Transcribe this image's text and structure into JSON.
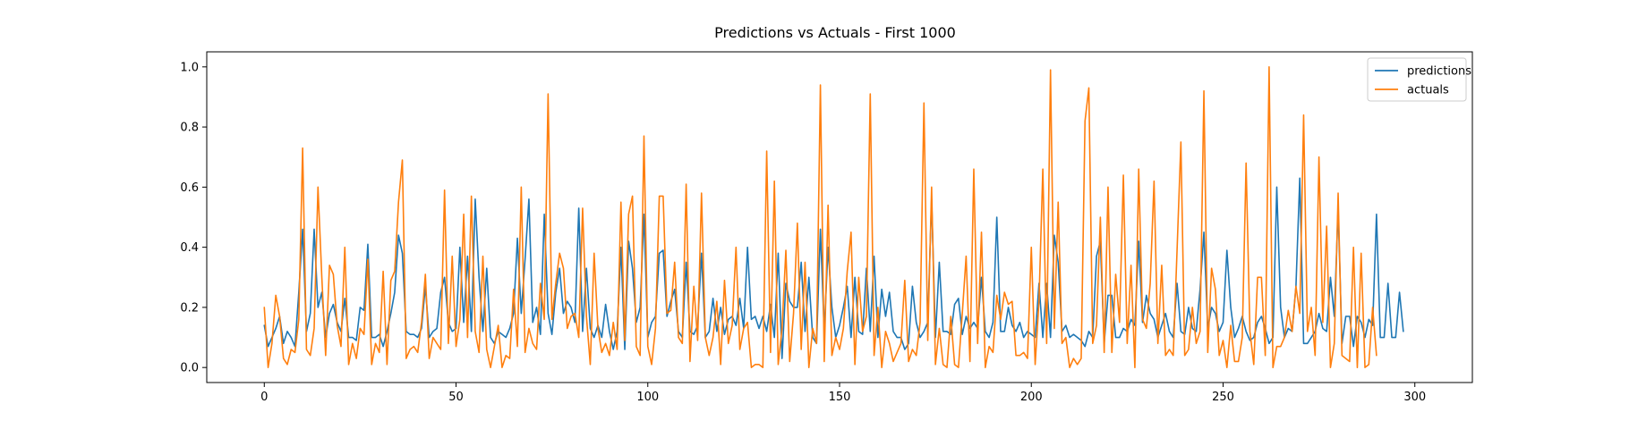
{
  "chart_data": {
    "type": "line",
    "title": "Predictions vs Actuals - First 1000",
    "xlabel": "",
    "ylabel": "",
    "xlim": [
      -15,
      315
    ],
    "ylim": [
      -0.05,
      1.05
    ],
    "x_ticks": [
      0,
      50,
      100,
      150,
      200,
      250,
      300
    ],
    "x_tick_labels": [
      "0",
      "50",
      "100",
      "150",
      "200",
      "250",
      "300"
    ],
    "y_ticks": [
      0.0,
      0.2,
      0.4,
      0.6,
      0.8,
      1.0
    ],
    "y_tick_labels": [
      "0.0",
      "0.2",
      "0.4",
      "0.6",
      "0.8",
      "1.0"
    ],
    "grid": false,
    "legend_position": "upper-right",
    "series": [
      {
        "name": "predictions",
        "color": "#1f77b4",
        "values": [
          0.14,
          0.07,
          0.1,
          0.13,
          0.17,
          0.08,
          0.12,
          0.1,
          0.07,
          0.25,
          0.46,
          0.12,
          0.18,
          0.46,
          0.2,
          0.25,
          0.1,
          0.18,
          0.21,
          0.15,
          0.12,
          0.23,
          0.1,
          0.1,
          0.09,
          0.2,
          0.19,
          0.41,
          0.1,
          0.1,
          0.11,
          0.07,
          0.12,
          0.18,
          0.25,
          0.44,
          0.38,
          0.12,
          0.11,
          0.11,
          0.1,
          0.13,
          0.27,
          0.1,
          0.12,
          0.13,
          0.25,
          0.3,
          0.15,
          0.12,
          0.13,
          0.4,
          0.15,
          0.37,
          0.12,
          0.56,
          0.3,
          0.12,
          0.33,
          0.1,
          0.08,
          0.12,
          0.11,
          0.1,
          0.13,
          0.18,
          0.43,
          0.18,
          0.36,
          0.56,
          0.15,
          0.2,
          0.11,
          0.51,
          0.18,
          0.11,
          0.25,
          0.33,
          0.18,
          0.22,
          0.2,
          0.15,
          0.53,
          0.12,
          0.33,
          0.13,
          0.1,
          0.14,
          0.1,
          0.21,
          0.12,
          0.06,
          0.12,
          0.4,
          0.06,
          0.42,
          0.33,
          0.15,
          0.2,
          0.51,
          0.1,
          0.15,
          0.17,
          0.38,
          0.39,
          0.17,
          0.22,
          0.26,
          0.12,
          0.1,
          0.35,
          0.12,
          0.11,
          0.14,
          0.38,
          0.1,
          0.12,
          0.23,
          0.12,
          0.2,
          0.11,
          0.16,
          0.17,
          0.14,
          0.23,
          0.13,
          0.4,
          0.16,
          0.17,
          0.13,
          0.17,
          0.12,
          0.21,
          0.1,
          0.38,
          0.03,
          0.28,
          0.22,
          0.2,
          0.2,
          0.35,
          0.12,
          0.3,
          0.1,
          0.08,
          0.46,
          0.12,
          0.4,
          0.2,
          0.1,
          0.14,
          0.2,
          0.27,
          0.1,
          0.3,
          0.12,
          0.11,
          0.33,
          0.12,
          0.37,
          0.1,
          0.26,
          0.17,
          0.25,
          0.12,
          0.1,
          0.1,
          0.06,
          0.08,
          0.27,
          0.15,
          0.1,
          0.12,
          0.15,
          0.56,
          0.1,
          0.35,
          0.12,
          0.12,
          0.11,
          0.21,
          0.23,
          0.11,
          0.17,
          0.13,
          0.15,
          0.13,
          0.3,
          0.12,
          0.1,
          0.15,
          0.5,
          0.12,
          0.12,
          0.2,
          0.14,
          0.12,
          0.15,
          0.1,
          0.12,
          0.11,
          0.1,
          0.28,
          0.1,
          0.28,
          0.1,
          0.44,
          0.35,
          0.12,
          0.14,
          0.1,
          0.11,
          0.1,
          0.09,
          0.07,
          0.12,
          0.1,
          0.37,
          0.42,
          0.08,
          0.24,
          0.24,
          0.1,
          0.1,
          0.13,
          0.12,
          0.16,
          0.14,
          0.42,
          0.15,
          0.24,
          0.18,
          0.16,
          0.1,
          0.14,
          0.18,
          0.12,
          0.1,
          0.28,
          0.12,
          0.11,
          0.2,
          0.13,
          0.12,
          0.26,
          0.45,
          0.13,
          0.2,
          0.18,
          0.12,
          0.15,
          0.39,
          0.2,
          0.1,
          0.13,
          0.17,
          0.12,
          0.09,
          0.1,
          0.15,
          0.17,
          0.13,
          0.08,
          0.1,
          0.6,
          0.2,
          0.1,
          0.13,
          0.12,
          0.27,
          0.63,
          0.08,
          0.08,
          0.1,
          0.12,
          0.18,
          0.13,
          0.12,
          0.3,
          0.17,
          0.53,
          0.08,
          0.17,
          0.17,
          0.07,
          0.17,
          0.15,
          0.1,
          0.16,
          0.14,
          0.51,
          0.1,
          0.1,
          0.28,
          0.1,
          0.1,
          0.25,
          0.12
        ],
        "values_note_removed": ""
      },
      {
        "name": "actuals",
        "color": "#ff7f0e",
        "values": [
          0.2,
          0.0,
          0.08,
          0.24,
          0.17,
          0.03,
          0.01,
          0.06,
          0.05,
          0.16,
          0.73,
          0.06,
          0.04,
          0.13,
          0.6,
          0.3,
          0.04,
          0.34,
          0.31,
          0.14,
          0.07,
          0.4,
          0.01,
          0.08,
          0.03,
          0.13,
          0.11,
          0.36,
          0.01,
          0.08,
          0.05,
          0.32,
          0.01,
          0.29,
          0.32,
          0.55,
          0.69,
          0.03,
          0.06,
          0.07,
          0.05,
          0.15,
          0.31,
          0.03,
          0.1,
          0.08,
          0.06,
          0.59,
          0.08,
          0.37,
          0.07,
          0.16,
          0.51,
          0.1,
          0.57,
          0.12,
          0.05,
          0.37,
          0.06,
          0.0,
          0.07,
          0.14,
          0.0,
          0.04,
          0.03,
          0.26,
          0.07,
          0.6,
          0.05,
          0.13,
          0.08,
          0.06,
          0.28,
          0.16,
          0.91,
          0.16,
          0.28,
          0.38,
          0.33,
          0.13,
          0.17,
          0.18,
          0.1,
          0.53,
          0.17,
          0.01,
          0.38,
          0.13,
          0.05,
          0.08,
          0.04,
          0.15,
          0.06,
          0.55,
          0.09,
          0.51,
          0.57,
          0.07,
          0.04,
          0.77,
          0.07,
          0.01,
          0.13,
          0.57,
          0.57,
          0.18,
          0.19,
          0.35,
          0.1,
          0.08,
          0.61,
          0.02,
          0.27,
          0.09,
          0.58,
          0.1,
          0.04,
          0.1,
          0.22,
          0.01,
          0.29,
          0.08,
          0.14,
          0.4,
          0.06,
          0.13,
          0.15,
          0.0,
          0.01,
          0.01,
          0.0,
          0.72,
          0.05,
          0.62,
          0.01,
          0.13,
          0.39,
          0.02,
          0.18,
          0.48,
          0.06,
          0.35,
          0.0,
          0.13,
          0.08,
          0.94,
          0.02,
          0.54,
          0.04,
          0.1,
          0.06,
          0.13,
          0.32,
          0.45,
          0.01,
          0.3,
          0.12,
          0.17,
          0.91,
          0.04,
          0.2,
          0.0,
          0.12,
          0.08,
          0.02,
          0.05,
          0.08,
          0.29,
          0.02,
          0.06,
          0.04,
          0.15,
          0.88,
          0.09,
          0.6,
          0.01,
          0.13,
          0.01,
          0.0,
          0.17,
          0.01,
          0.0,
          0.18,
          0.37,
          0.02,
          0.66,
          0.08,
          0.45,
          0.0,
          0.07,
          0.05,
          0.24,
          0.16,
          0.25,
          0.21,
          0.22,
          0.04,
          0.04,
          0.05,
          0.03,
          0.4,
          0.01,
          0.22,
          0.66,
          0.08,
          0.99,
          0.13,
          0.55,
          0.08,
          0.1,
          0.0,
          0.03,
          0.01,
          0.03,
          0.82,
          0.93,
          0.08,
          0.14,
          0.5,
          0.05,
          0.6,
          0.05,
          0.31,
          0.15,
          0.64,
          0.08,
          0.34,
          0.0,
          0.66,
          0.16,
          0.13,
          0.28,
          0.62,
          0.08,
          0.34,
          0.04,
          0.06,
          0.04,
          0.39,
          0.75,
          0.04,
          0.06,
          0.2,
          0.08,
          0.12,
          0.92,
          0.05,
          0.33,
          0.26,
          0.04,
          0.09,
          0.0,
          0.14,
          0.02,
          0.02,
          0.1,
          0.68,
          0.12,
          0.01,
          0.3,
          0.3,
          0.04,
          1.0,
          0.0,
          0.07,
          0.07,
          0.1,
          0.19,
          0.12,
          0.27,
          0.18,
          0.84,
          0.12,
          0.2,
          0.04,
          0.7,
          0.15,
          0.47,
          0.0,
          0.08,
          0.58,
          0.04,
          0.03,
          0.02,
          0.4,
          0.0,
          0.38,
          0.0,
          0.01,
          0.2,
          0.04
        ]
      }
    ]
  }
}
